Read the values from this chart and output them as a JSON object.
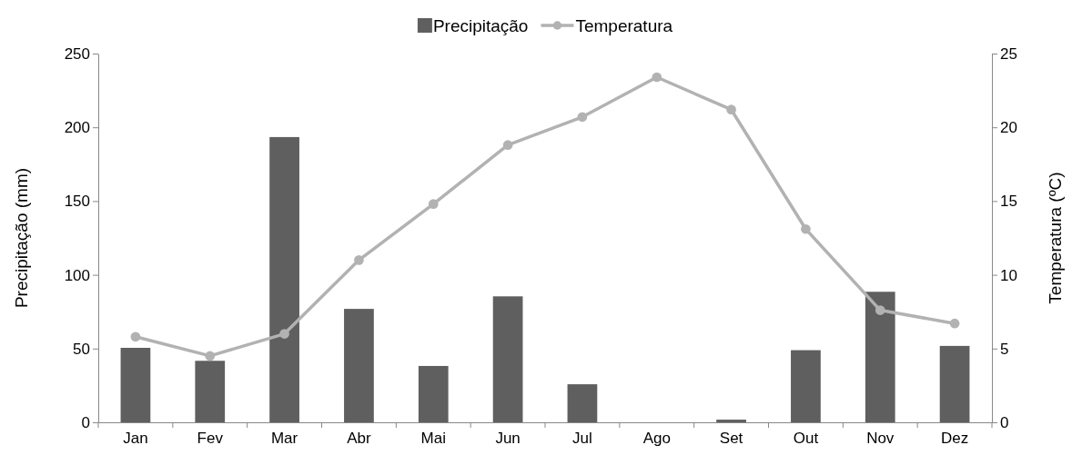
{
  "chart_data": {
    "type": "bar",
    "categories": [
      "Jan",
      "Fev",
      "Mar",
      "Abr",
      "Mai",
      "Jun",
      "Jul",
      "Ago",
      "Set",
      "Out",
      "Nov",
      "Dez"
    ],
    "ylabel": "Precipitação (mm)",
    "y2label": "Temperatura (ºC)",
    "ylim": [
      0,
      250
    ],
    "yticks": [
      0,
      50,
      100,
      150,
      200,
      250
    ],
    "y2lim": [
      0,
      25
    ],
    "y2ticks": [
      0,
      5,
      10,
      15,
      20,
      25
    ],
    "legend": "top",
    "marker": "circle",
    "grid": false,
    "series": [
      {
        "name": "Precipitação",
        "color": "#5f5f5f",
        "values": [
          50.5,
          41.7,
          193.4,
          76.9,
          38.2,
          85.4,
          25.8,
          0,
          1.8,
          48.9,
          88.5,
          51.8
        ]
      },
      {
        "name": "Temperatura",
        "type": "line",
        "axis": "y2",
        "color": "#b2b2b2",
        "values": [
          5.8,
          4.5,
          6.0,
          11.0,
          14.8,
          18.8,
          20.7,
          23.4,
          21.2,
          13.1,
          7.6,
          6.7
        ]
      }
    ]
  }
}
